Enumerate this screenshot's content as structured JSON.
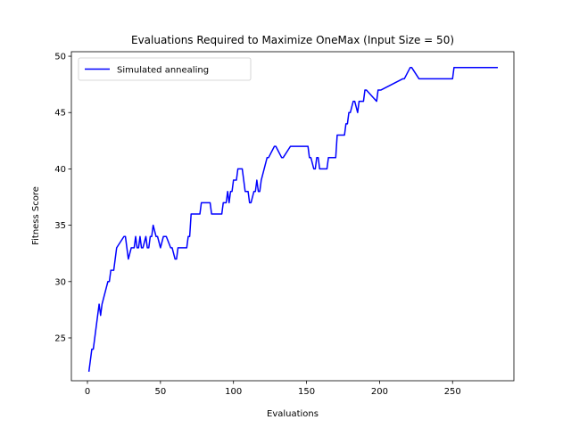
{
  "chart_data": {
    "type": "line",
    "title": "Evaluations Required to Maximize OneMax (Input Size = 50)",
    "xlabel": "Evaluations",
    "ylabel": "Fitness Score",
    "xlim": [
      -11,
      292
    ],
    "ylim": [
      21.2,
      50.4
    ],
    "xticks": [
      0,
      50,
      100,
      150,
      200,
      250
    ],
    "yticks": [
      25,
      30,
      35,
      40,
      45,
      50
    ],
    "grid": false,
    "legend_position": "top-left",
    "series": [
      {
        "name": "Simulated annealing",
        "color": "#0000ff",
        "x": [
          1,
          3,
          4,
          8,
          9,
          10,
          14,
          15,
          16,
          18,
          19,
          20,
          25,
          26,
          27,
          28,
          30,
          32,
          33,
          34,
          35,
          36,
          37,
          38,
          40,
          41,
          42,
          43,
          44,
          45,
          47,
          48,
          50,
          52,
          53,
          54,
          57,
          58,
          60,
          61,
          62,
          63,
          68,
          69,
          70,
          71,
          77,
          78,
          84,
          85,
          92,
          93,
          95,
          96,
          97,
          98,
          99,
          100,
          101,
          102,
          103,
          106,
          107,
          108,
          110,
          111,
          112,
          114,
          115,
          116,
          117,
          118,
          119,
          123,
          124,
          128,
          129,
          133,
          134,
          139,
          140,
          151,
          152,
          153,
          155,
          156,
          157,
          158,
          159,
          164,
          165,
          170,
          171,
          176,
          177,
          178,
          179,
          180,
          182,
          183,
          185,
          186,
          188,
          189,
          190,
          191,
          198,
          199,
          200,
          201,
          216,
          217,
          221,
          222,
          227,
          228,
          250,
          251,
          281
        ],
        "y": [
          22,
          24,
          24,
          28,
          27,
          28,
          30,
          30,
          31,
          31,
          32,
          33,
          34,
          34,
          33,
          32,
          33,
          33,
          34,
          33,
          33,
          34,
          33,
          33,
          34,
          33,
          33,
          34,
          34,
          35,
          34,
          34,
          33,
          34,
          34,
          34,
          33,
          33,
          32,
          32,
          33,
          33,
          33,
          34,
          34,
          36,
          36,
          37,
          37,
          36,
          36,
          37,
          37,
          38,
          37,
          38,
          38,
          39,
          39,
          39,
          40,
          40,
          39,
          38,
          38,
          37,
          37,
          38,
          38,
          39,
          38,
          38,
          39,
          41,
          41,
          42,
          42,
          41,
          41,
          42,
          42,
          42,
          41,
          41,
          40,
          40,
          41,
          41,
          40,
          40,
          41,
          41,
          43,
          43,
          44,
          44,
          45,
          45,
          46,
          46,
          45,
          46,
          46,
          46,
          47,
          47,
          46,
          47,
          47,
          47,
          48,
          48,
          49,
          49,
          48,
          48,
          48,
          49,
          49
        ]
      }
    ]
  }
}
